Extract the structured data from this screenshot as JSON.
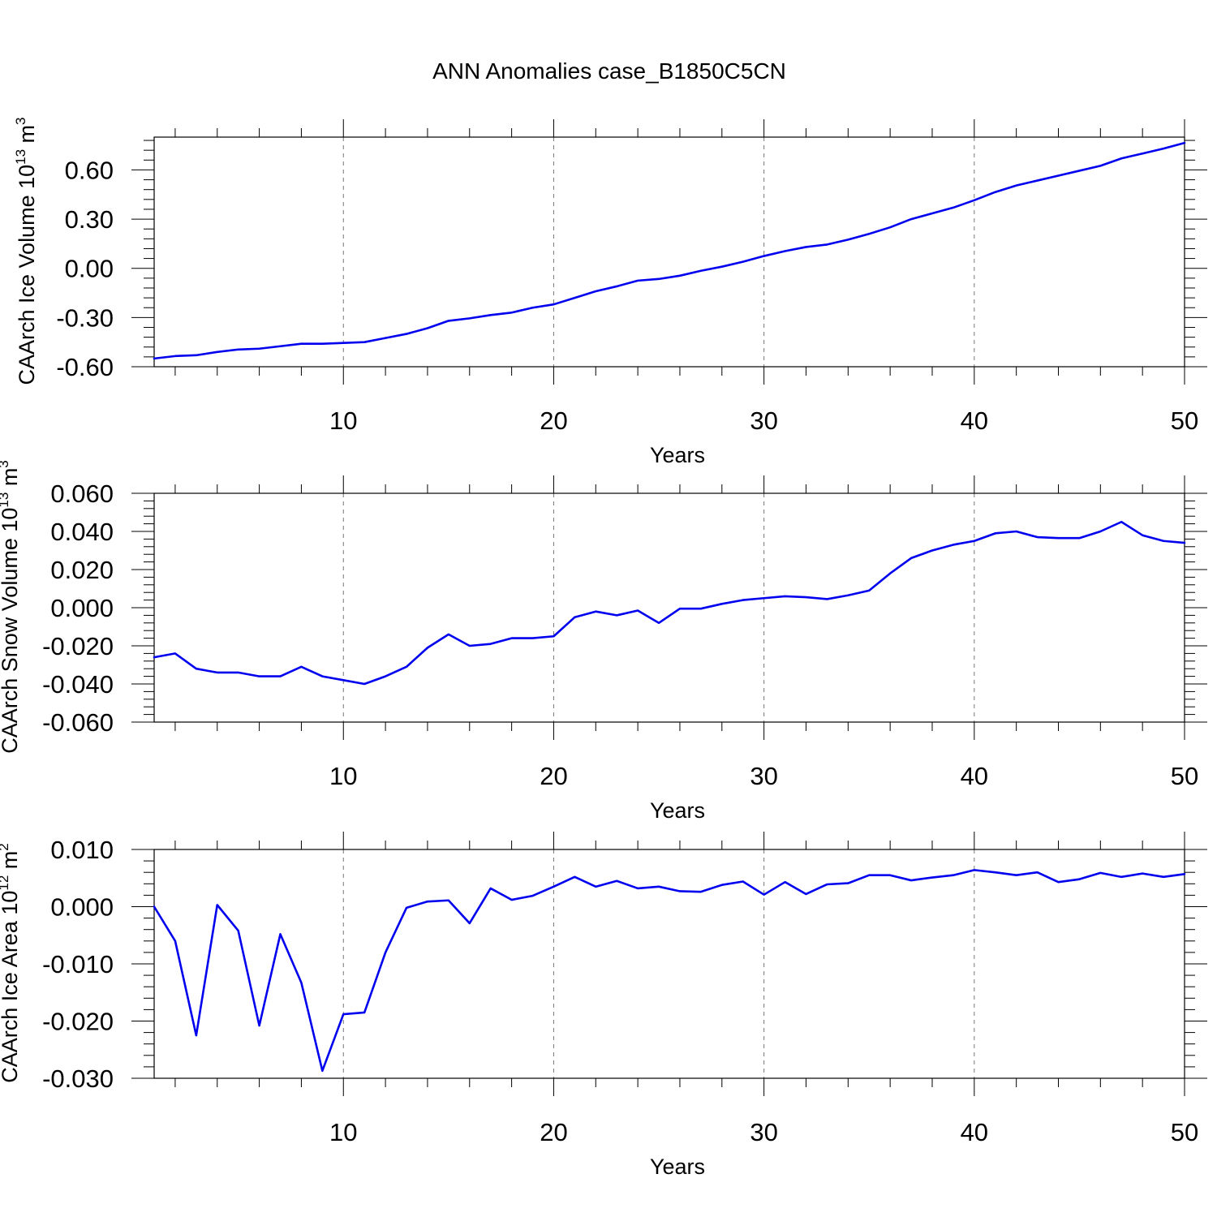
{
  "figure": {
    "title": "ANN Anomalies case_B1850C5CN",
    "line_color": "#0000ee"
  },
  "chart_data": [
    {
      "type": "line",
      "xlabel": "Years",
      "ylabel": "CAArch Ice Volume 10",
      "ylabel_exp": "13",
      "ylabel_unit": " m",
      "ylabel_unit_exp": "3",
      "xlim": [
        1,
        50
      ],
      "ylim": [
        -0.6,
        0.8
      ],
      "xticks": [
        10,
        20,
        30,
        40,
        50
      ],
      "xtick_labels": [
        "10",
        "20",
        "30",
        "40",
        "50"
      ],
      "yticks": [
        -0.6,
        -0.3,
        0.0,
        0.3,
        0.6
      ],
      "ytick_labels": [
        "-0.60",
        "-0.30",
        "0.00",
        "0.30",
        "0.60"
      ],
      "grid": "vertical dashed at major x ticks",
      "x": [
        1,
        2,
        3,
        4,
        5,
        6,
        7,
        8,
        9,
        10,
        11,
        12,
        13,
        14,
        15,
        16,
        17,
        18,
        19,
        20,
        21,
        22,
        23,
        24,
        25,
        26,
        27,
        28,
        29,
        30,
        31,
        32,
        33,
        34,
        35,
        36,
        37,
        38,
        39,
        40,
        41,
        42,
        43,
        44,
        45,
        46,
        47,
        48,
        49,
        50
      ],
      "series": [
        {
          "values": [
            -0.55,
            -0.535,
            -0.53,
            -0.51,
            -0.495,
            -0.49,
            -0.475,
            -0.46,
            -0.46,
            -0.455,
            -0.45,
            -0.425,
            -0.4,
            -0.365,
            -0.32,
            -0.305,
            -0.285,
            -0.27,
            -0.24,
            -0.22,
            -0.18,
            -0.14,
            -0.11,
            -0.075,
            -0.065,
            -0.045,
            -0.015,
            0.01,
            0.04,
            0.075,
            0.105,
            0.13,
            0.145,
            0.175,
            0.21,
            0.25,
            0.3,
            0.335,
            0.37,
            0.415,
            0.465,
            0.505,
            0.535,
            0.565,
            0.595,
            0.625,
            0.67,
            0.7,
            0.73,
            0.765
          ]
        }
      ]
    },
    {
      "type": "line",
      "xlabel": "Years",
      "ylabel": "CAArch Snow Volume 10",
      "ylabel_exp": "13",
      "ylabel_unit": " m",
      "ylabel_unit_exp": "3",
      "xlim": [
        1,
        50
      ],
      "ylim": [
        -0.06,
        0.06
      ],
      "xticks": [
        10,
        20,
        30,
        40,
        50
      ],
      "xtick_labels": [
        "10",
        "20",
        "30",
        "40",
        "50"
      ],
      "yticks": [
        -0.06,
        -0.04,
        -0.02,
        0.0,
        0.02,
        0.04,
        0.06
      ],
      "ytick_labels": [
        "-0.060",
        "-0.040",
        "-0.020",
        "0.000",
        "0.020",
        "0.040",
        "0.060"
      ],
      "grid": "vertical dashed at major x ticks",
      "x": [
        1,
        2,
        3,
        4,
        5,
        6,
        7,
        8,
        9,
        10,
        11,
        12,
        13,
        14,
        15,
        16,
        17,
        18,
        19,
        20,
        21,
        22,
        23,
        24,
        25,
        26,
        27,
        28,
        29,
        30,
        31,
        32,
        33,
        34,
        35,
        36,
        37,
        38,
        39,
        40,
        41,
        42,
        43,
        44,
        45,
        46,
        47,
        48,
        49,
        50
      ],
      "series": [
        {
          "values": [
            -0.026,
            -0.024,
            -0.032,
            -0.034,
            -0.034,
            -0.036,
            -0.036,
            -0.031,
            -0.036,
            -0.038,
            -0.04,
            -0.036,
            -0.031,
            -0.021,
            -0.014,
            -0.02,
            -0.019,
            -0.016,
            -0.016,
            -0.015,
            -0.005,
            -0.002,
            -0.004,
            -0.0015,
            -0.008,
            -0.0005,
            -0.0005,
            0.002,
            0.004,
            0.005,
            0.006,
            0.0055,
            0.0045,
            0.0065,
            0.009,
            0.018,
            0.026,
            0.03,
            0.033,
            0.035,
            0.039,
            0.04,
            0.037,
            0.0365,
            0.0365,
            0.04,
            0.045,
            0.038,
            0.035,
            0.034
          ]
        }
      ]
    },
    {
      "type": "line",
      "xlabel": "Years",
      "ylabel": "CAArch Ice Area 10",
      "ylabel_exp": "12",
      "ylabel_unit": " m",
      "ylabel_unit_exp": "2",
      "xlim": [
        1,
        50
      ],
      "ylim": [
        -0.03,
        0.01
      ],
      "xticks": [
        10,
        20,
        30,
        40,
        50
      ],
      "xtick_labels": [
        "10",
        "20",
        "30",
        "40",
        "50"
      ],
      "yticks": [
        -0.03,
        -0.02,
        -0.01,
        0.0,
        0.01
      ],
      "ytick_labels": [
        "-0.030",
        "-0.020",
        "-0.010",
        "0.000",
        "0.010"
      ],
      "grid": "vertical dashed at major x ticks",
      "x": [
        1,
        2,
        3,
        4,
        5,
        6,
        7,
        8,
        9,
        10,
        11,
        12,
        13,
        14,
        15,
        16,
        17,
        18,
        19,
        20,
        21,
        22,
        23,
        24,
        25,
        26,
        27,
        28,
        29,
        30,
        31,
        32,
        33,
        34,
        35,
        36,
        37,
        38,
        39,
        40,
        41,
        42,
        43,
        44,
        45,
        46,
        47,
        48,
        49,
        50
      ],
      "series": [
        {
          "values": [
            0.0,
            -0.006,
            -0.0225,
            0.0003,
            -0.0042,
            -0.0208,
            -0.0048,
            -0.0133,
            -0.0287,
            -0.0188,
            -0.0185,
            -0.008,
            -0.0002,
            0.0009,
            0.0011,
            -0.0029,
            0.0032,
            0.0012,
            0.0019,
            0.0035,
            0.0052,
            0.0035,
            0.0045,
            0.0032,
            0.0035,
            0.0027,
            0.0026,
            0.0038,
            0.0044,
            0.0021,
            0.0043,
            0.0022,
            0.0039,
            0.0041,
            0.0055,
            0.0055,
            0.0046,
            0.0051,
            0.0055,
            0.0064,
            0.006,
            0.0055,
            0.006,
            0.0043,
            0.0048,
            0.0059,
            0.0052,
            0.0058,
            0.0052,
            0.0057
          ]
        }
      ]
    }
  ]
}
